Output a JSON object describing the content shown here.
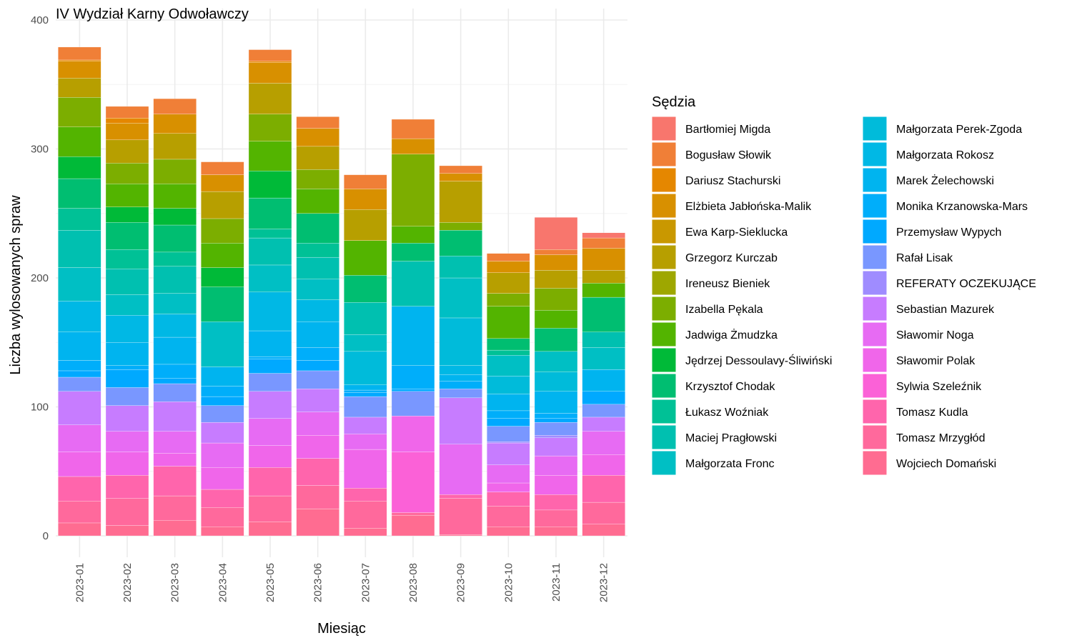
{
  "chart_data": {
    "type": "bar",
    "stacked": true,
    "title": "IV Wydział Karny Odwoławczy",
    "xlabel": "Miesiąc",
    "ylabel": "Liczba wylosowanych spraw",
    "ylim": [
      0,
      400
    ],
    "yticks": [
      0,
      100,
      200,
      300,
      400
    ],
    "grid": true,
    "legend_title": "Sędzia",
    "legend_position": "right",
    "categories": [
      "2023-01",
      "2023-02",
      "2023-03",
      "2023-04",
      "2023-05",
      "2023-06",
      "2023-07",
      "2023-08",
      "2023-09",
      "2023-10",
      "2023-11",
      "2023-12"
    ],
    "series": [
      {
        "name": "Wojciech Domański",
        "color": "#FF6C91",
        "values": [
          10,
          8,
          12,
          7,
          11,
          21,
          6,
          16,
          1,
          7,
          7,
          9
        ]
      },
      {
        "name": "Tomasz Mrzygłód",
        "color": "#FF699C",
        "values": [
          17,
          21,
          19,
          15,
          20,
          18,
          21,
          2,
          28,
          16,
          13,
          17
        ]
      },
      {
        "name": "Tomasz Kudla",
        "color": "#FF65AC",
        "values": [
          19,
          18,
          23,
          14,
          22,
          21,
          10,
          0,
          3,
          11,
          12,
          21
        ]
      },
      {
        "name": "Sylwia Szeleźnik",
        "color": "#FB61D7",
        "values": [
          0,
          0,
          0,
          0,
          0,
          0,
          0,
          47,
          0,
          0,
          0,
          0
        ]
      },
      {
        "name": "Sławomir Polak",
        "color": "#F066EA",
        "values": [
          19,
          18,
          10,
          17,
          17,
          18,
          30,
          28,
          0,
          7,
          15,
          16
        ]
      },
      {
        "name": "Sławomir Noga",
        "color": "#E76BF3",
        "values": [
          21,
          16,
          17,
          19,
          21,
          18,
          12,
          0,
          39,
          14,
          15,
          18
        ]
      },
      {
        "name": "Sebastian Mazurek",
        "color": "#C77CFF",
        "values": [
          26,
          20,
          23,
          16,
          21,
          18,
          13,
          0,
          36,
          17,
          14,
          11
        ]
      },
      {
        "name": "REFERATY OCZEKUJĄCE",
        "color": "#9F8CFF",
        "values": [
          0,
          0,
          0,
          0,
          0,
          0,
          0,
          0,
          0,
          1,
          2,
          0
        ]
      },
      {
        "name": "Rafał Lisak",
        "color": "#7997FF",
        "values": [
          11,
          14,
          14,
          13,
          14,
          14,
          16,
          19,
          7,
          12,
          10,
          10
        ]
      },
      {
        "name": "Przemysław Wypych",
        "color": "#00A9FF",
        "values": [
          5,
          14,
          4,
          7,
          11,
          8,
          3,
          2,
          0,
          6,
          3,
          10
        ]
      },
      {
        "name": "Monika Krzanowska-Mars",
        "color": "#00AEFA",
        "values": [
          8,
          3,
          11,
          8,
          2,
          10,
          2,
          18,
          6,
          6,
          4,
          0
        ]
      },
      {
        "name": "Marek Żelechowski",
        "color": "#00B4EF",
        "values": [
          22,
          18,
          21,
          15,
          20,
          20,
          4,
          46,
          5,
          13,
          17,
          17
        ]
      },
      {
        "name": "Małgorzata Rokosz",
        "color": "#00B8E5",
        "values": [
          24,
          21,
          18,
          0,
          30,
          17,
          0,
          0,
          7,
          0,
          0,
          0
        ]
      },
      {
        "name": "Małgorzata Perek-Zgoda",
        "color": "#00BBDA",
        "values": [
          0,
          0,
          0,
          0,
          0,
          0,
          26,
          0,
          37,
          14,
          15,
          0
        ]
      },
      {
        "name": "Małgorzata Fronc",
        "color": "#00BFC4",
        "values": [
          26,
          16,
          16,
          35,
          21,
          16,
          13,
          0,
          31,
          16,
          16,
          17
        ]
      },
      {
        "name": "Maciej Pragłowski",
        "color": "#00C0B0",
        "values": [
          29,
          20,
          21,
          0,
          21,
          17,
          25,
          35,
          17,
          0,
          0,
          12
        ]
      },
      {
        "name": "Łukasz Woźniak",
        "color": "#00C196",
        "values": [
          17,
          15,
          11,
          0,
          7,
          11,
          0,
          0,
          0,
          4,
          0,
          0
        ]
      },
      {
        "name": "Krzysztof Chodak",
        "color": "#00BE71",
        "values": [
          23,
          21,
          21,
          27,
          24,
          23,
          21,
          14,
          20,
          9,
          18,
          27
        ]
      },
      {
        "name": "Jędrzej Dessoulavy-Śliwiński",
        "color": "#00BA38",
        "values": [
          17,
          12,
          13,
          15,
          21,
          0,
          0,
          0,
          0,
          0,
          0,
          0
        ]
      },
      {
        "name": "Jadwiga Żmudzka",
        "color": "#53B400",
        "values": [
          23,
          18,
          19,
          19,
          23,
          19,
          27,
          13,
          0,
          25,
          14,
          11
        ]
      },
      {
        "name": "Izabella Pękala",
        "color": "#7CAE00",
        "values": [
          23,
          16,
          19,
          19,
          21,
          15,
          0,
          56,
          6,
          10,
          17,
          0
        ]
      },
      {
        "name": "Ireneusz Bieniek",
        "color": "#9EA700",
        "values": [
          0,
          0,
          0,
          0,
          0,
          0,
          0,
          0,
          0,
          0,
          0,
          0
        ]
      },
      {
        "name": "Grzegorz Kurczab",
        "color": "#B79F00",
        "values": [
          15,
          18,
          20,
          21,
          24,
          18,
          24,
          0,
          32,
          16,
          14,
          10
        ]
      },
      {
        "name": "Ewa Karp-Sieklucka",
        "color": "#C99800",
        "values": [
          0,
          0,
          0,
          0,
          0,
          0,
          0,
          0,
          0,
          0,
          0,
          0
        ]
      },
      {
        "name": "Elżbieta Jabłońska-Malik",
        "color": "#D89000",
        "values": [
          13,
          13,
          15,
          13,
          16,
          14,
          16,
          12,
          6,
          9,
          12,
          17
        ]
      },
      {
        "name": "Dariusz Stachurski",
        "color": "#E58700",
        "values": [
          1,
          4,
          0,
          0,
          1,
          0,
          0,
          0,
          0,
          0,
          0,
          0
        ]
      },
      {
        "name": "Bogusław Słowik",
        "color": "#F07F37",
        "values": [
          10,
          9,
          12,
          10,
          9,
          9,
          11,
          15,
          6,
          6,
          4,
          8
        ]
      },
      {
        "name": "Bartłomiej Migda",
        "color": "#F8766D",
        "values": [
          0,
          0,
          0,
          0,
          0,
          0,
          0,
          0,
          0,
          0,
          25,
          4
        ]
      }
    ],
    "legend_order": [
      "Bartłomiej Migda",
      "Bogusław Słowik",
      "Dariusz Stachurski",
      "Elżbieta Jabłońska-Malik",
      "Ewa Karp-Sieklucka",
      "Grzegorz Kurczab",
      "Ireneusz Bieniek",
      "Izabella Pękala",
      "Jadwiga Żmudzka",
      "Jędrzej Dessoulavy-Śliwiński",
      "Krzysztof Chodak",
      "Łukasz Woźniak",
      "Maciej Pragłowski",
      "Małgorzata Fronc",
      "Małgorzata Perek-Zgoda",
      "Małgorzata Rokosz",
      "Marek Żelechowski",
      "Monika Krzanowska-Mars",
      "Przemysław Wypych",
      "Rafał Lisak",
      "REFERATY OCZEKUJĄCE",
      "Sebastian Mazurek",
      "Sławomir Noga",
      "Sławomir Polak",
      "Sylwia Szeleźnik",
      "Tomasz Kudla",
      "Tomasz Mrzygłód",
      "Wojciech Domański"
    ]
  }
}
